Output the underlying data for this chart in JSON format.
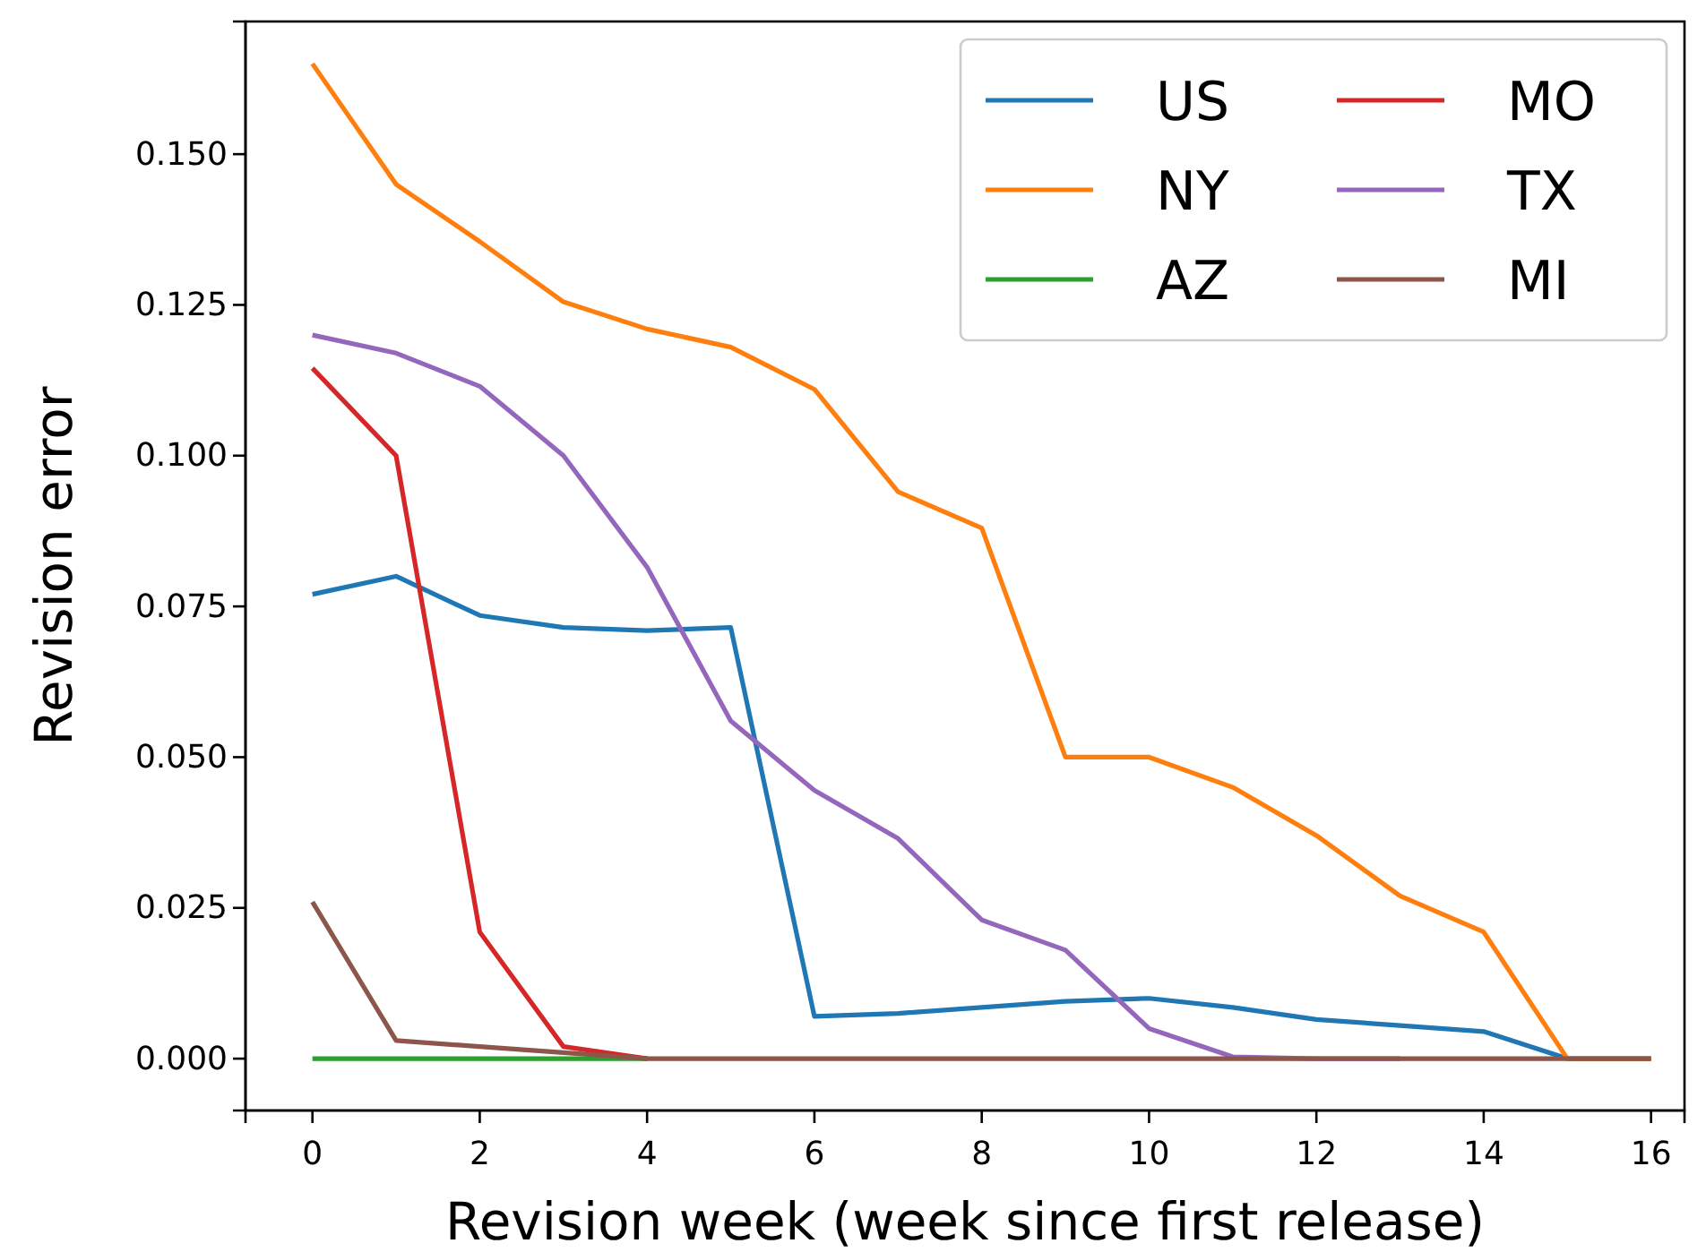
{
  "chart_data": {
    "type": "line",
    "xlabel": "Revision week (week since first release)",
    "ylabel": "Revision error",
    "x": [
      0,
      1,
      2,
      3,
      4,
      5,
      6,
      7,
      8,
      9,
      10,
      11,
      12,
      13,
      14,
      15,
      16
    ],
    "xlim": [
      -0.8,
      16.4
    ],
    "xticks": [
      0,
      2,
      4,
      6,
      8,
      10,
      12,
      14,
      16
    ],
    "ylim": [
      -0.0086,
      0.172
    ],
    "yticks": [
      {
        "value": 0,
        "label": "0.000"
      },
      {
        "value": 0.025,
        "label": "0.025"
      },
      {
        "value": 0.05,
        "label": "0.050"
      },
      {
        "value": 0.075,
        "label": "0.075"
      },
      {
        "value": 0.1,
        "label": "0.100"
      },
      {
        "value": 0.125,
        "label": "0.125"
      },
      {
        "value": 0.15,
        "label": "0.150"
      }
    ],
    "grid": false,
    "legend": "top right",
    "marker": "none",
    "line_style": "solid",
    "series": [
      {
        "name": "US",
        "color": "#1f77b4",
        "values": [
          0.077,
          0.08,
          0.0735,
          0.0715,
          0.071,
          0.0715,
          0.007,
          0.0075,
          0.0085,
          0.0095,
          0.01,
          0.0085,
          0.0065,
          0.0055,
          0.0045,
          0,
          0
        ]
      },
      {
        "name": "NY",
        "color": "#ff7f0e",
        "values": [
          0.165,
          0.145,
          0.1355,
          0.1255,
          0.121,
          0.118,
          0.111,
          0.094,
          0.088,
          0.05,
          0.05,
          0.045,
          0.037,
          0.027,
          0.021,
          0,
          0
        ]
      },
      {
        "name": "AZ",
        "color": "#2ca02c",
        "values": [
          0,
          0,
          0,
          0,
          0,
          null,
          null,
          null,
          null,
          null,
          null,
          null,
          null,
          null,
          null,
          null,
          null
        ]
      },
      {
        "name": "MO",
        "color": "#d62728",
        "values": [
          0.1145,
          0.1,
          0.021,
          0.002,
          0,
          null,
          null,
          null,
          null,
          null,
          null,
          null,
          null,
          null,
          null,
          null,
          null
        ]
      },
      {
        "name": "TX",
        "color": "#9467bd",
        "values": [
          0.12,
          0.117,
          0.1115,
          0.1,
          0.0815,
          0.056,
          0.0445,
          0.0365,
          0.023,
          0.018,
          0.005,
          0.0003,
          0,
          0,
          null,
          null,
          null
        ]
      },
      {
        "name": "MI",
        "color": "#8c564b",
        "values": [
          0.026,
          0.003,
          0.002,
          0.001,
          0,
          0,
          0,
          0,
          0,
          0,
          0,
          0,
          0,
          0,
          0,
          0,
          0
        ]
      }
    ]
  }
}
